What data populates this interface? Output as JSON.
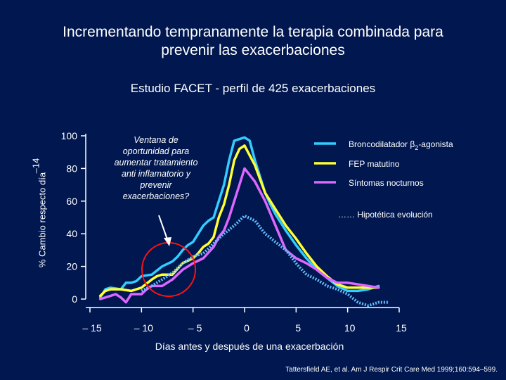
{
  "slide": {
    "title_line1": "Incrementando tempranamente la terapia combinada para",
    "title_line2": "prevenir las exacerbaciones",
    "subtitle": "Estudio FACET - perfil de 425 exacerbaciones",
    "y_axis_label": "% Cambio respecto día",
    "y_axis_label_tail": "–14",
    "citation": "Tattersfield AE, et al. Am J Respir Crit Care Med 1999;160:594–599."
  },
  "annotation": {
    "text_lines": [
      "Ventana de",
      "oportunidad para",
      "aumentar tratamiento",
      "anti inflamatorio y",
      "prevenir",
      "exacerbaciones?"
    ]
  },
  "chart_data": {
    "type": "line",
    "title": "Estudio FACET - perfil de 425 exacerbaciones",
    "xlabel": "Días antes y después de una exacerbación",
    "ylabel": "% Cambio respecto día –14",
    "xlim": [
      -15,
      15
    ],
    "ylim": [
      0,
      100
    ],
    "x_ticks": [
      -15,
      -10,
      -5,
      0,
      5,
      10,
      15
    ],
    "x_tick_labels": [
      "– 15",
      "– 10",
      "– 5",
      "0",
      "5",
      "10",
      "15"
    ],
    "y_ticks": [
      0,
      20,
      40,
      60,
      80,
      100
    ],
    "y_tick_labels": [
      "0",
      "20",
      "40",
      "60",
      "80",
      "100"
    ],
    "grid": false,
    "legend_position": "top-right",
    "series": [
      {
        "name": "Broncodilatador β2-agonista",
        "legend_main": "Broncodilatador β",
        "legend_sub": "2",
        "legend_tail": "-agonista",
        "color": "#33ccff",
        "style": "solid",
        "x": [
          -14,
          -13.5,
          -13,
          -12,
          -11.5,
          -11,
          -10.5,
          -10,
          -9,
          -8,
          -7,
          -6.5,
          -6,
          -5.5,
          -5,
          -4.5,
          -4,
          -3.5,
          -3,
          -2.5,
          -2,
          -1.5,
          -1,
          0,
          0.5,
          1,
          1.5,
          2,
          2.5,
          3,
          4,
          5,
          6,
          7,
          8,
          9,
          10,
          11,
          12,
          13
        ],
        "values": [
          1,
          6,
          7,
          6,
          10,
          10,
          11,
          14,
          15,
          20,
          23,
          26,
          30,
          33,
          35,
          40,
          45,
          48,
          50,
          60,
          70,
          85,
          97,
          99,
          97,
          85,
          75,
          65,
          58,
          52,
          42,
          33,
          25,
          18,
          13,
          8,
          5,
          5,
          6,
          8
        ]
      },
      {
        "name": "FEP matutino",
        "legend_main": "FEP matutino",
        "color": "#ffff33",
        "style": "solid",
        "x": [
          -14,
          -13.5,
          -13,
          -12,
          -11,
          -10,
          -9,
          -8.5,
          -8,
          -7,
          -6,
          -5,
          -4.5,
          -4,
          -3.5,
          -3,
          -2.5,
          -2,
          -1.5,
          -1,
          -0.5,
          0,
          1,
          2,
          3,
          4,
          5,
          6,
          7,
          8,
          9,
          10,
          11,
          12,
          13
        ],
        "values": [
          2,
          5,
          6,
          6,
          5,
          7,
          12,
          14,
          15,
          15,
          22,
          25,
          28,
          32,
          34,
          38,
          50,
          58,
          70,
          85,
          92,
          94,
          82,
          65,
          55,
          45,
          37,
          28,
          20,
          14,
          9,
          7,
          7,
          7,
          7
        ]
      },
      {
        "name": "Síntomas nocturnos",
        "legend_main": "Síntomas nocturnos",
        "color": "#dd66ff",
        "style": "solid",
        "x": [
          -14,
          -13,
          -12.5,
          -12,
          -11.5,
          -11,
          -10,
          -9.5,
          -9,
          -8,
          -7,
          -6,
          -5,
          -4,
          -3,
          -2.5,
          -2,
          -1.5,
          -1,
          -0.5,
          0,
          1,
          2,
          3,
          4,
          5,
          6,
          7,
          8,
          9,
          10,
          11,
          12,
          13
        ],
        "values": [
          0,
          2,
          3,
          1,
          -2,
          3,
          3,
          6,
          8,
          8,
          12,
          18,
          22,
          25,
          32,
          38,
          42,
          50,
          60,
          70,
          80,
          72,
          60,
          45,
          30,
          25,
          22,
          18,
          13,
          10,
          10,
          9,
          8,
          7
        ]
      },
      {
        "name": "Hipotética evolución",
        "legend_main": "……  Hipotética evolución",
        "color": "#66bbff",
        "style": "dotted",
        "x": [
          -10,
          -9,
          -8,
          -7,
          -6,
          -5,
          -4,
          -3,
          -2,
          -1,
          0,
          1,
          2,
          3,
          4,
          5,
          6,
          7,
          8,
          9,
          10,
          11,
          12,
          13,
          14
        ],
        "values": [
          5,
          8,
          12,
          16,
          22,
          26,
          28,
          34,
          40,
          45,
          51,
          48,
          40,
          35,
          30,
          22,
          15,
          12,
          8,
          6,
          3,
          -2,
          -4,
          -2,
          -2
        ]
      }
    ]
  }
}
